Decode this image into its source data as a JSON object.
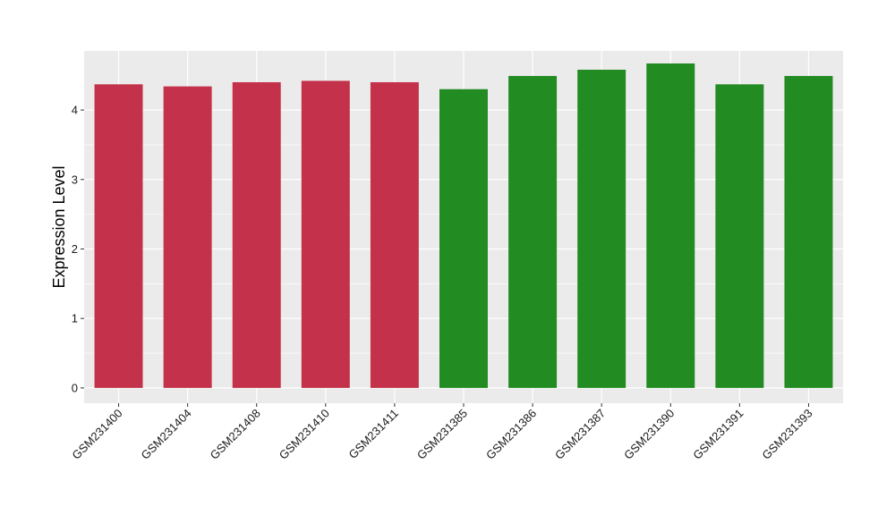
{
  "chart_data": {
    "type": "bar",
    "title": "",
    "xlabel": "",
    "ylabel": "Expression Level",
    "categories": [
      "GSM231400",
      "GSM231404",
      "GSM231408",
      "GSM231410",
      "GSM231411",
      "GSM231385",
      "GSM231386",
      "GSM231387",
      "GSM231390",
      "GSM231391",
      "GSM231393"
    ],
    "values": [
      4.37,
      4.34,
      4.4,
      4.42,
      4.4,
      4.3,
      4.49,
      4.58,
      4.67,
      4.37,
      4.49
    ],
    "groups": [
      0,
      0,
      0,
      0,
      0,
      1,
      1,
      1,
      1,
      1,
      1
    ],
    "group_colors": [
      "#C3314A",
      "#228B22"
    ],
    "ylim": [
      -0.22,
      4.85
    ],
    "yticks": [
      0,
      1,
      2,
      3,
      4
    ],
    "grid": true,
    "legend": "none",
    "panel_color": "#EBEBEB",
    "grid_color": "#FFFFFF"
  }
}
